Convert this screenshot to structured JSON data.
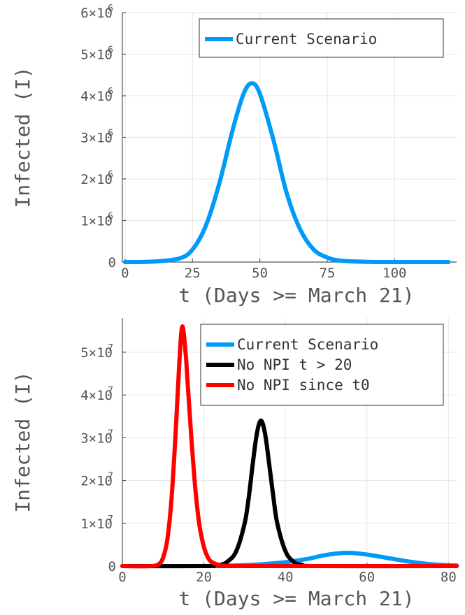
{
  "chart_data": [
    {
      "type": "line",
      "xlabel": "t (Days >= March 21)",
      "ylabel": "Infected (I)",
      "xlim": [
        -1,
        123
      ],
      "ylim": [
        0,
        6000000
      ],
      "x_ticks": [
        "0",
        "25",
        "50",
        "75",
        "100"
      ],
      "x_tick_values": [
        0,
        25,
        50,
        75,
        100
      ],
      "y_ticks": [
        {
          "value": 0,
          "mantissa": "0",
          "exponent": ""
        },
        {
          "value": 1000000,
          "mantissa": "1×10",
          "exponent": "6"
        },
        {
          "value": 2000000,
          "mantissa": "2×10",
          "exponent": "6"
        },
        {
          "value": 3000000,
          "mantissa": "3×10",
          "exponent": "6"
        },
        {
          "value": 4000000,
          "mantissa": "4×10",
          "exponent": "6"
        },
        {
          "value": 5000000,
          "mantissa": "5×10",
          "exponent": "6"
        },
        {
          "value": 6000000,
          "mantissa": "6×10",
          "exponent": "6"
        }
      ],
      "grid": true,
      "legend_position": "top-right",
      "series": [
        {
          "name": "Current Scenario",
          "color": "#009af9",
          "x": [
            0,
            10,
            20,
            25,
            30,
            35,
            40,
            44,
            47,
            50,
            55,
            60,
            65,
            70,
            75,
            80,
            90,
            100,
            120
          ],
          "y": [
            0,
            10000,
            85000,
            300000,
            880000,
            1900000,
            3200000,
            4050000,
            4300000,
            4050000,
            2950000,
            1650000,
            780000,
            300000,
            110000,
            35000,
            4000,
            500,
            0
          ]
        }
      ]
    },
    {
      "type": "line",
      "xlabel": "t (Days >= March 21)",
      "ylabel": "Infected (I)",
      "xlim": [
        0,
        82
      ],
      "ylim": [
        0,
        58000000
      ],
      "x_ticks": [
        "0",
        "20",
        "40",
        "60",
        "80"
      ],
      "x_tick_values": [
        0,
        20,
        40,
        60,
        80
      ],
      "y_ticks": [
        {
          "value": 0,
          "mantissa": "0",
          "exponent": ""
        },
        {
          "value": 10000000,
          "mantissa": "1×10",
          "exponent": "7"
        },
        {
          "value": 20000000,
          "mantissa": "2×10",
          "exponent": "7"
        },
        {
          "value": 30000000,
          "mantissa": "3×10",
          "exponent": "7"
        },
        {
          "value": 40000000,
          "mantissa": "4×10",
          "exponent": "7"
        },
        {
          "value": 50000000,
          "mantissa": "5×10",
          "exponent": "7"
        }
      ],
      "grid": true,
      "legend_position": "top-right",
      "series": [
        {
          "name": "Current Scenario",
          "color": "#009af9",
          "x": [
            0,
            20,
            30,
            35,
            40,
            45,
            50,
            55,
            60,
            65,
            70,
            75,
            80,
            82
          ],
          "y": [
            0,
            10000,
            200000,
            500000,
            900000,
            1600000,
            2600000,
            3100000,
            2700000,
            1900000,
            1100000,
            500000,
            200000,
            150000
          ]
        },
        {
          "name": "No NPI t > 20",
          "color": "#000000",
          "x": [
            0,
            20,
            24,
            26,
            28,
            30,
            31,
            32,
            33,
            34,
            35,
            36,
            37,
            38,
            40,
            42,
            44,
            48,
            82
          ],
          "y": [
            0,
            0,
            300000,
            1200000,
            3600000,
            10000000,
            16000000,
            24000000,
            31000000,
            34000000,
            31000000,
            24000000,
            16500000,
            10000000,
            3500000,
            1000000,
            300000,
            0,
            0
          ]
        },
        {
          "name": "No NPI since t0",
          "color": "#ff0000",
          "x": [
            0,
            7,
            9,
            10,
            11,
            12,
            13,
            14,
            14.7,
            15.5,
            16,
            17,
            18,
            19,
            20,
            21,
            22,
            24,
            26,
            28,
            82
          ],
          "y": [
            0,
            0,
            500000,
            2000000,
            6000000,
            15000000,
            30000000,
            48000000,
            56000000,
            50000000,
            43000000,
            29000000,
            17000000,
            9000000,
            4500000,
            2000000,
            900000,
            200000,
            50000,
            0,
            0
          ]
        }
      ]
    }
  ]
}
